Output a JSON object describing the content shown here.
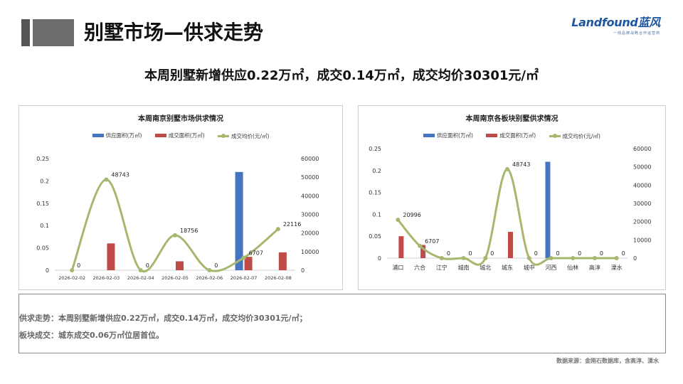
{
  "page": {
    "title": "别墅市场—供求走势",
    "headline": "本周别墅新增供应0.22万㎡，成交0.14万㎡，成交均价30301元/㎡",
    "logo_text": "Landfound蓝风",
    "logo_sub": "一线品牌战略合作运营商",
    "summary_line1": "供求走势：本周别墅新增供应0.22万㎡，成交0.14万㎡，成交均价30301元/㎡；",
    "summary_line2": "板块成交：城东成交0.06万㎡位居首位。",
    "source": "数据来源：金刚石数据库，含高淳、溧水"
  },
  "colors": {
    "supply": "#4575c0",
    "deal": "#be4b48",
    "price": "#a5b86e"
  },
  "chart_data": [
    {
      "type": "bar",
      "title": "本周南京别墅市场供求情况",
      "categories": [
        "2026-02-02",
        "2026-02-03",
        "2026-02-04",
        "2026-02-05",
        "2026-02-06",
        "2026-02-07",
        "2026-02-08"
      ],
      "series": [
        {
          "name": "供应面积(万㎡)",
          "type": "bar",
          "axis": "left",
          "values": [
            0,
            0,
            0,
            0,
            0,
            0.22,
            0
          ]
        },
        {
          "name": "成交面积(万㎡)",
          "type": "bar",
          "axis": "left",
          "values": [
            0,
            0.06,
            0,
            0.02,
            0,
            0.03,
            0.04
          ]
        },
        {
          "name": "成交均价(元/㎡)",
          "type": "line",
          "axis": "right",
          "values": [
            0,
            48743,
            0,
            18756,
            0,
            6707,
            22116
          ]
        }
      ],
      "data_labels": [
        "0",
        "48743",
        "0",
        "18756",
        "0",
        "6707",
        "22116"
      ],
      "ylim_left": [
        0,
        0.25
      ],
      "yticks_left": [
        "0",
        "0.05",
        "0.1",
        "0.15",
        "0.2",
        "0.25"
      ],
      "ylim_right": [
        0,
        60000
      ],
      "yticks_right": [
        "0",
        "10000",
        "20000",
        "30000",
        "40000",
        "50000",
        "60000"
      ],
      "legend": "top",
      "grid": false
    },
    {
      "type": "bar",
      "title": "本周南京各板块别墅供求情况",
      "categories": [
        "浦口",
        "六合",
        "江宁",
        "城南",
        "城北",
        "城东",
        "城中",
        "河西",
        "仙林",
        "高淳",
        "溧水"
      ],
      "series": [
        {
          "name": "供应面积(万㎡)",
          "type": "bar",
          "axis": "left",
          "values": [
            0,
            0,
            0,
            0,
            0,
            0,
            0,
            0.22,
            0,
            0,
            0
          ]
        },
        {
          "name": "成交面积(万㎡)",
          "type": "bar",
          "axis": "left",
          "values": [
            0.05,
            0.03,
            0,
            0,
            0,
            0.06,
            0,
            0,
            0,
            0,
            0
          ]
        },
        {
          "name": "成交均价(元/㎡)",
          "type": "line",
          "axis": "right",
          "values": [
            20996,
            6707,
            0,
            0,
            0,
            48743,
            0,
            0,
            0,
            0,
            0
          ]
        }
      ],
      "data_labels": [
        "20996",
        "6707",
        "0",
        "0",
        "0",
        "48743",
        "0",
        "0",
        "0",
        "0",
        "0"
      ],
      "ylim_left": [
        0,
        0.25
      ],
      "yticks_left": [
        "0",
        "0.05",
        "0.1",
        "0.15",
        "0.2",
        "0.25"
      ],
      "ylim_right": [
        0,
        60000
      ],
      "yticks_right": [
        "0",
        "10000",
        "20000",
        "30000",
        "40000",
        "50000",
        "60000"
      ],
      "legend": "top",
      "grid": false
    }
  ]
}
